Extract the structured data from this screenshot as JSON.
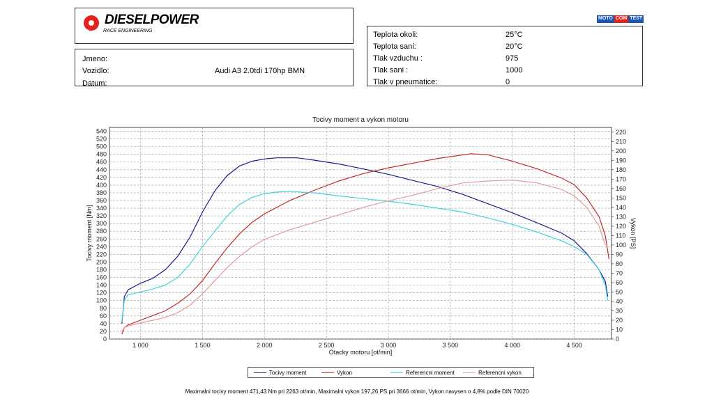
{
  "header": {
    "logo_text": "DIESELPOWER",
    "logo_sub": "RACE ENGINEERING",
    "badge": [
      "MOTO",
      "COM",
      "TEST"
    ]
  },
  "vehicle": {
    "name_label": "Jmeno:",
    "name_value": "",
    "car_label": "Vozidlo:",
    "car_value": "Audi A3 2.0tdi 170hp BMN",
    "date_label": "Datum:",
    "date_value": ""
  },
  "conditions": [
    {
      "label": "Teplota okoli:",
      "value": "25°C"
    },
    {
      "label": "Teplota sani:",
      "value": "20°C"
    },
    {
      "label": "Tlak vzduchu :",
      "value": "975"
    },
    {
      "label": "Tlak sani :",
      "value": "1000"
    },
    {
      "label": "Tlak v pneumatice:",
      "value": "0"
    }
  ],
  "chart_data": {
    "type": "line",
    "title": "Tocivy moment a vykon motoru",
    "xlabel": "Otacky motoru [ot/min]",
    "ylabel_left": "Tocivy moment [Nm]",
    "ylabel_right": "Vykon [PS]",
    "xlim": [
      750,
      4800
    ],
    "ylim_left": [
      0,
      550
    ],
    "ylim_right": [
      0,
      225
    ],
    "x_ticks": [
      "1 000",
      "1 500",
      "2 000",
      "2 500",
      "3 000",
      "3 500",
      "4 000",
      "4 500"
    ],
    "x_tick_values": [
      1000,
      1500,
      2000,
      2500,
      3000,
      3500,
      4000,
      4500
    ],
    "y_left_ticks": [
      0,
      20,
      40,
      60,
      80,
      100,
      120,
      140,
      160,
      180,
      200,
      220,
      240,
      260,
      280,
      300,
      320,
      340,
      360,
      380,
      400,
      420,
      440,
      460,
      480,
      500,
      520,
      540
    ],
    "y_right_ticks": [
      0,
      10,
      20,
      30,
      40,
      50,
      60,
      70,
      80,
      90,
      100,
      110,
      120,
      130,
      140,
      150,
      160,
      170,
      180,
      190,
      200,
      210,
      220
    ],
    "grid": true,
    "legend_position": "bottom",
    "series": [
      {
        "name": "Tocivy moment",
        "axis": "left",
        "color": "#1a1a8c",
        "points": [
          [
            850,
            40
          ],
          [
            870,
            110
          ],
          [
            900,
            128
          ],
          [
            1000,
            145
          ],
          [
            1100,
            158
          ],
          [
            1200,
            180
          ],
          [
            1300,
            215
          ],
          [
            1400,
            265
          ],
          [
            1500,
            330
          ],
          [
            1600,
            385
          ],
          [
            1700,
            425
          ],
          [
            1800,
            450
          ],
          [
            1900,
            462
          ],
          [
            2000,
            468
          ],
          [
            2100,
            471
          ],
          [
            2263,
            471
          ],
          [
            2400,
            465
          ],
          [
            2600,
            455
          ],
          [
            2800,
            442
          ],
          [
            3000,
            428
          ],
          [
            3200,
            412
          ],
          [
            3400,
            396
          ],
          [
            3600,
            376
          ],
          [
            3800,
            352
          ],
          [
            4000,
            328
          ],
          [
            4200,
            302
          ],
          [
            4400,
            275
          ],
          [
            4500,
            255
          ],
          [
            4600,
            222
          ],
          [
            4700,
            180
          ],
          [
            4750,
            150
          ],
          [
            4770,
            110
          ]
        ]
      },
      {
        "name": "Vykon",
        "axis": "right",
        "color": "#c42a2a",
        "points": [
          [
            850,
            5
          ],
          [
            870,
            12
          ],
          [
            900,
            15
          ],
          [
            1000,
            20
          ],
          [
            1100,
            25
          ],
          [
            1200,
            30
          ],
          [
            1300,
            38
          ],
          [
            1400,
            48
          ],
          [
            1500,
            62
          ],
          [
            1600,
            80
          ],
          [
            1700,
            97
          ],
          [
            1800,
            112
          ],
          [
            1900,
            124
          ],
          [
            2000,
            133
          ],
          [
            2200,
            147
          ],
          [
            2400,
            158
          ],
          [
            2600,
            168
          ],
          [
            2800,
            176
          ],
          [
            3000,
            182
          ],
          [
            3200,
            187
          ],
          [
            3400,
            192
          ],
          [
            3666,
            197
          ],
          [
            3800,
            196
          ],
          [
            4000,
            189
          ],
          [
            4200,
            181
          ],
          [
            4400,
            171
          ],
          [
            4500,
            164
          ],
          [
            4600,
            150
          ],
          [
            4700,
            130
          ],
          [
            4750,
            110
          ],
          [
            4780,
            85
          ]
        ]
      },
      {
        "name": "Referencni moment",
        "axis": "left",
        "color": "#3fd3dc",
        "points": [
          [
            850,
            45
          ],
          [
            870,
            100
          ],
          [
            900,
            115
          ],
          [
            1000,
            122
          ],
          [
            1100,
            130
          ],
          [
            1200,
            140
          ],
          [
            1300,
            160
          ],
          [
            1400,
            195
          ],
          [
            1500,
            240
          ],
          [
            1600,
            280
          ],
          [
            1700,
            320
          ],
          [
            1800,
            350
          ],
          [
            1900,
            368
          ],
          [
            2000,
            378
          ],
          [
            2100,
            382
          ],
          [
            2200,
            384
          ],
          [
            2400,
            380
          ],
          [
            2600,
            372
          ],
          [
            2800,
            365
          ],
          [
            3000,
            358
          ],
          [
            3200,
            350
          ],
          [
            3400,
            340
          ],
          [
            3600,
            330
          ],
          [
            3800,
            315
          ],
          [
            4000,
            298
          ],
          [
            4200,
            278
          ],
          [
            4400,
            255
          ],
          [
            4500,
            240
          ],
          [
            4600,
            220
          ],
          [
            4700,
            180
          ],
          [
            4750,
            140
          ],
          [
            4770,
            100
          ]
        ]
      },
      {
        "name": "Referencni vykon",
        "axis": "right",
        "color": "#e49a9a",
        "points": [
          [
            850,
            8
          ],
          [
            870,
            12
          ],
          [
            900,
            14
          ],
          [
            1000,
            17
          ],
          [
            1100,
            20
          ],
          [
            1200,
            23
          ],
          [
            1300,
            28
          ],
          [
            1400,
            36
          ],
          [
            1500,
            48
          ],
          [
            1600,
            62
          ],
          [
            1700,
            76
          ],
          [
            1800,
            88
          ],
          [
            1900,
            98
          ],
          [
            2000,
            106
          ],
          [
            2200,
            116
          ],
          [
            2400,
            124
          ],
          [
            2600,
            132
          ],
          [
            2800,
            140
          ],
          [
            3000,
            147
          ],
          [
            3200,
            153
          ],
          [
            3400,
            160
          ],
          [
            3600,
            166
          ],
          [
            3800,
            168
          ],
          [
            4000,
            169
          ],
          [
            4200,
            166
          ],
          [
            4400,
            159
          ],
          [
            4500,
            152
          ],
          [
            4600,
            140
          ],
          [
            4700,
            120
          ],
          [
            4750,
            100
          ]
        ]
      }
    ]
  },
  "legend": [
    "Tocivy moment",
    "Vykon",
    "Referencni moment",
    "Referencni vykon"
  ],
  "footer": "Maximalni tocivy moment 471,43 Nm pri 2263 ot/min,  Maximalni vykon 197,26 PS pri 3666 ot/min,  Vykon navysen o 4,8% podle DIN 70020"
}
